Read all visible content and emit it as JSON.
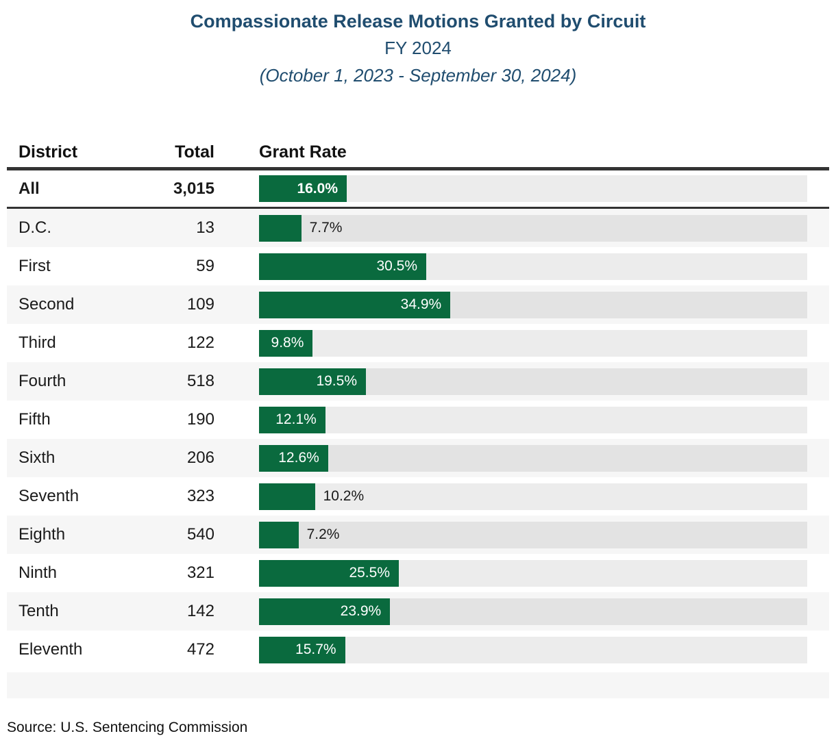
{
  "header": {
    "title": "Compassionate Release Motions Granted by Circuit",
    "subtitle": "FY 2024",
    "period": "(October 1, 2023 - September 30, 2024)"
  },
  "columns": {
    "district": "District",
    "total": "Total",
    "rate": "Grant Rate"
  },
  "source": "Source: U.S. Sentencing Commission",
  "colors": {
    "navy": "#204d6f",
    "bar_green": "#0a6a3e",
    "track_gray": "#ececec",
    "stripe_gray": "#f6f6f6",
    "rule_dark": "#333333"
  },
  "chart_data": {
    "type": "bar",
    "orientation": "horizontal",
    "title": "Compassionate Release Motions Granted by Circuit",
    "subtitle": "FY 2024 (October 1, 2023 - September 30, 2024)",
    "xlabel": "Grant Rate",
    "xlim": [
      0,
      100
    ],
    "unit": "percent",
    "grid": false,
    "legend": false,
    "categories": [
      "All",
      "D.C.",
      "First",
      "Second",
      "Third",
      "Fourth",
      "Fifth",
      "Sixth",
      "Seventh",
      "Eighth",
      "Ninth",
      "Tenth",
      "Eleventh"
    ],
    "rows": [
      {
        "district": "All",
        "total": "3,015",
        "rate": 16.0,
        "rate_label": "16.0%",
        "label_inside": true,
        "emphasis": true
      },
      {
        "district": "D.C.",
        "total": "13",
        "rate": 7.7,
        "rate_label": "7.7%",
        "label_inside": false,
        "emphasis": false
      },
      {
        "district": "First",
        "total": "59",
        "rate": 30.5,
        "rate_label": "30.5%",
        "label_inside": true,
        "emphasis": false
      },
      {
        "district": "Second",
        "total": "109",
        "rate": 34.9,
        "rate_label": "34.9%",
        "label_inside": true,
        "emphasis": false
      },
      {
        "district": "Third",
        "total": "122",
        "rate": 9.8,
        "rate_label": "9.8%",
        "label_inside": true,
        "emphasis": false
      },
      {
        "district": "Fourth",
        "total": "518",
        "rate": 19.5,
        "rate_label": "19.5%",
        "label_inside": true,
        "emphasis": false
      },
      {
        "district": "Fifth",
        "total": "190",
        "rate": 12.1,
        "rate_label": "12.1%",
        "label_inside": true,
        "emphasis": false
      },
      {
        "district": "Sixth",
        "total": "206",
        "rate": 12.6,
        "rate_label": "12.6%",
        "label_inside": true,
        "emphasis": false
      },
      {
        "district": "Seventh",
        "total": "323",
        "rate": 10.2,
        "rate_label": "10.2%",
        "label_inside": false,
        "emphasis": false
      },
      {
        "district": "Eighth",
        "total": "540",
        "rate": 7.2,
        "rate_label": "7.2%",
        "label_inside": false,
        "emphasis": false
      },
      {
        "district": "Ninth",
        "total": "321",
        "rate": 25.5,
        "rate_label": "25.5%",
        "label_inside": true,
        "emphasis": false
      },
      {
        "district": "Tenth",
        "total": "142",
        "rate": 23.9,
        "rate_label": "23.9%",
        "label_inside": true,
        "emphasis": false
      },
      {
        "district": "Eleventh",
        "total": "472",
        "rate": 15.7,
        "rate_label": "15.7%",
        "label_inside": true,
        "emphasis": false
      }
    ]
  }
}
